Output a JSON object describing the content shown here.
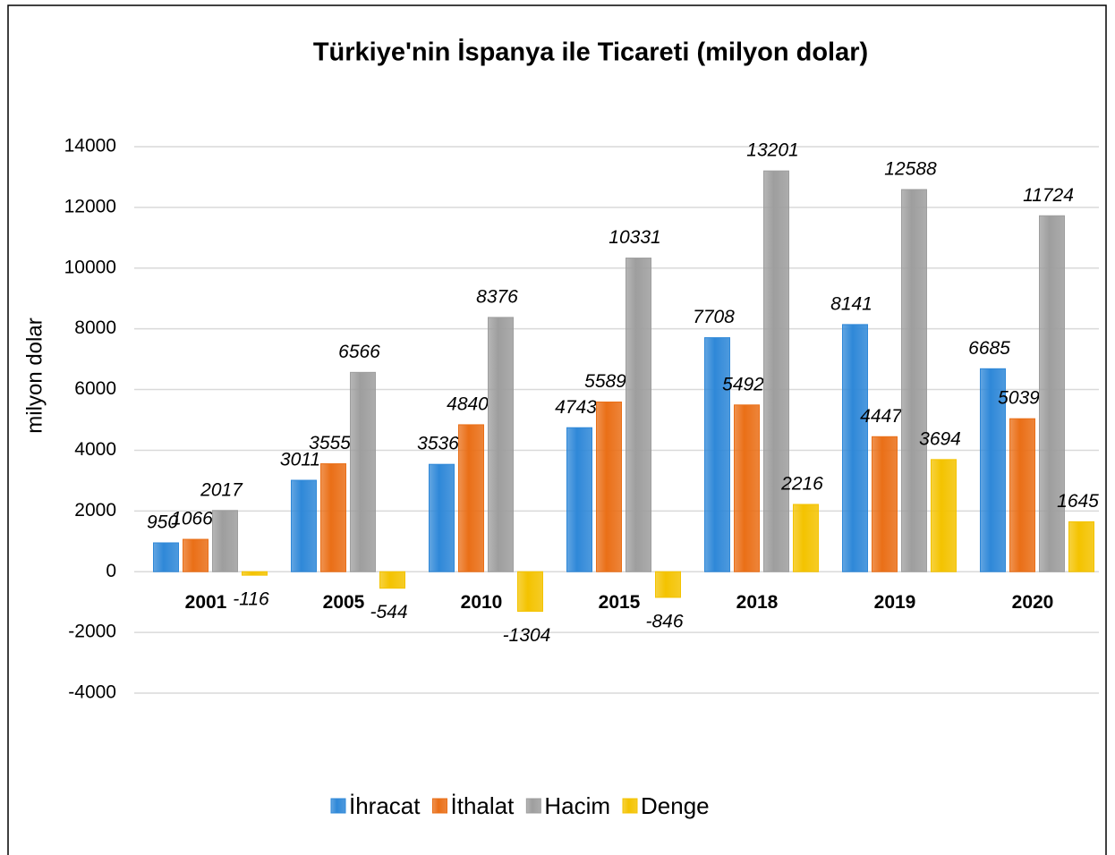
{
  "chart_data": {
    "type": "bar",
    "title": "Türkiye'nin İspanya ile Ticareti (milyon dolar)",
    "y_label": "milyon dolar",
    "categories": [
      "2001",
      "2005",
      "2010",
      "2015",
      "2018",
      "2019",
      "2020"
    ],
    "series": [
      {
        "name": "İhracat",
        "color": "#2f88d8",
        "values": [
          950,
          3011,
          3536,
          4743,
          7708,
          8141,
          6685
        ]
      },
      {
        "name": "İthalat",
        "color": "#ea6f17",
        "values": [
          1066,
          3555,
          4840,
          5589,
          5492,
          4447,
          5039
        ]
      },
      {
        "name": "Hacim",
        "color": "#9e9e9e",
        "values": [
          2017,
          6566,
          8376,
          10331,
          13201,
          12588,
          11724
        ]
      },
      {
        "name": "Denge",
        "color": "#f4c300",
        "values": [
          -116,
          -544,
          -1304,
          -846,
          2216,
          3694,
          1645
        ]
      }
    ],
    "ylim": [
      -4000,
      14000
    ],
    "yticks": [
      -4000,
      -2000,
      0,
      2000,
      4000,
      6000,
      8000,
      10000,
      12000,
      14000
    ],
    "grid": true,
    "legend": "bottom"
  }
}
